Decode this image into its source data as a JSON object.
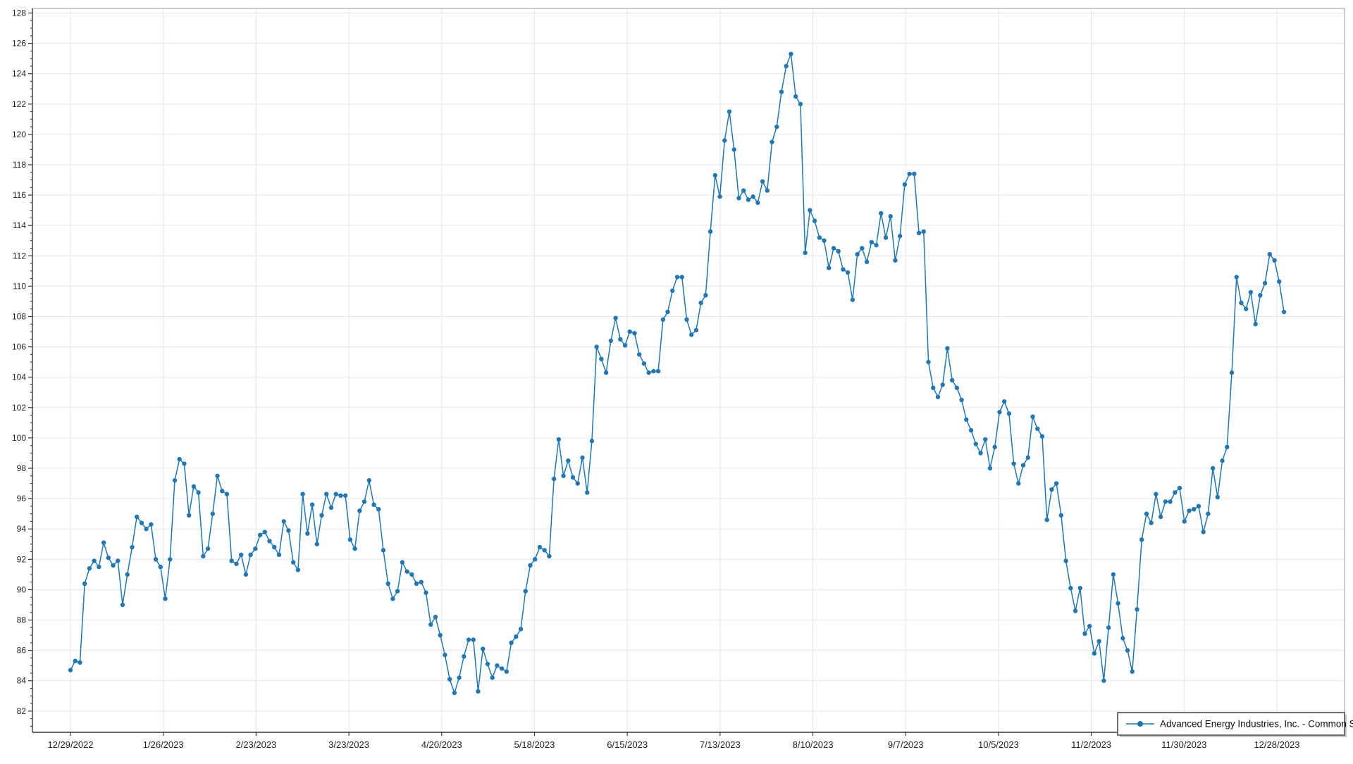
{
  "chart": {
    "legend_label": "Advanced Energy Industries, Inc. - Common Stock",
    "line_color": "#2077b4",
    "marker_color": "#1f77b4",
    "grid_color": "#e6e6e6",
    "axis_color": "#333333",
    "border_color": "#9b9b9b",
    "label_color": "#222222",
    "legend_border_color": "#707070",
    "background_color": "#ffffff"
  },
  "chart_data": {
    "type": "line",
    "title": "",
    "xlabel": "",
    "ylabel": "",
    "grid": true,
    "legend_position": "bottom-right",
    "ylim": [
      80.6,
      128.3
    ],
    "y_ticks": [
      82,
      84,
      86,
      88,
      90,
      92,
      94,
      96,
      98,
      100,
      102,
      104,
      106,
      108,
      110,
      112,
      114,
      116,
      118,
      120,
      122,
      124,
      126,
      128
    ],
    "x_tick_labels": [
      "12/29/2022",
      "1/26/2023",
      "2/23/2023",
      "3/23/2023",
      "4/20/2023",
      "5/18/2023",
      "6/15/2023",
      "7/13/2023",
      "8/10/2023",
      "9/7/2023",
      "10/5/2023",
      "11/2/2023",
      "11/30/2023",
      "12/28/2023"
    ],
    "series": [
      {
        "name": "Advanced Energy Industries, Inc. - Common Stock",
        "values": [
          84.7,
          85.3,
          85.2,
          90.4,
          91.4,
          91.9,
          91.5,
          93.1,
          92.1,
          91.6,
          91.9,
          89.0,
          91.0,
          92.8,
          94.8,
          94.4,
          94.0,
          94.3,
          92.0,
          91.5,
          89.4,
          92.0,
          97.2,
          98.6,
          98.3,
          94.9,
          96.8,
          96.4,
          92.2,
          92.7,
          95.0,
          97.5,
          96.5,
          96.3,
          91.9,
          91.7,
          92.3,
          91.0,
          92.3,
          92.7,
          93.6,
          93.8,
          93.2,
          92.8,
          92.3,
          94.5,
          93.9,
          91.8,
          91.3,
          96.3,
          93.7,
          95.6,
          93.0,
          94.9,
          96.3,
          95.4,
          96.3,
          96.2,
          96.2,
          93.3,
          92.7,
          95.2,
          95.8,
          97.2,
          95.6,
          95.3,
          92.6,
          90.4,
          89.4,
          89.9,
          91.8,
          91.2,
          91.0,
          90.4,
          90.5,
          89.8,
          87.7,
          88.2,
          87.0,
          85.7,
          84.1,
          83.2,
          84.2,
          85.6,
          86.7,
          86.7,
          83.3,
          86.1,
          85.1,
          84.2,
          85.0,
          84.8,
          84.6,
          86.5,
          86.9,
          87.4,
          89.9,
          91.6,
          92.0,
          92.8,
          92.6,
          92.2,
          97.3,
          99.9,
          97.5,
          98.5,
          97.4,
          97.0,
          98.7,
          96.4,
          99.8,
          106.0,
          105.2,
          104.3,
          106.4,
          107.9,
          106.5,
          106.1,
          107.0,
          106.9,
          105.5,
          104.9,
          104.3,
          104.4,
          104.4,
          107.8,
          108.3,
          109.7,
          110.6,
          110.6,
          107.8,
          106.8,
          107.1,
          108.9,
          109.4,
          113.6,
          117.3,
          115.9,
          119.6,
          121.5,
          119.0,
          115.8,
          116.3,
          115.7,
          115.9,
          115.5,
          116.9,
          116.3,
          119.5,
          120.5,
          122.8,
          124.5,
          125.3,
          122.5,
          122.0,
          112.2,
          115.0,
          114.3,
          113.2,
          113.0,
          111.2,
          112.5,
          112.3,
          111.1,
          110.9,
          109.1,
          112.1,
          112.5,
          111.6,
          112.9,
          112.7,
          114.8,
          113.2,
          114.6,
          111.7,
          113.3,
          116.7,
          117.4,
          117.4,
          113.5,
          113.6,
          105.0,
          103.3,
          102.7,
          103.5,
          105.9,
          103.8,
          103.3,
          102.5,
          101.2,
          100.5,
          99.6,
          99.0,
          99.9,
          98.0,
          99.4,
          101.7,
          102.4,
          101.6,
          98.3,
          97.0,
          98.2,
          98.7,
          101.4,
          100.6,
          100.1,
          94.6,
          96.6,
          97.0,
          94.9,
          91.9,
          90.1,
          88.6,
          90.1,
          87.1,
          87.6,
          85.8,
          86.6,
          84.0,
          87.5,
          91.0,
          89.1,
          86.8,
          86.0,
          84.6,
          88.7,
          93.3,
          95.0,
          94.4,
          96.3,
          94.8,
          95.8,
          95.8,
          96.4,
          96.7,
          94.5,
          95.2,
          95.3,
          95.5,
          93.8,
          95.0,
          98.0,
          96.1,
          98.5,
          99.4,
          104.3,
          110.6,
          108.9,
          108.5,
          109.6,
          107.5,
          109.4,
          110.2,
          112.1,
          111.7,
          110.3,
          108.3
        ]
      }
    ]
  }
}
